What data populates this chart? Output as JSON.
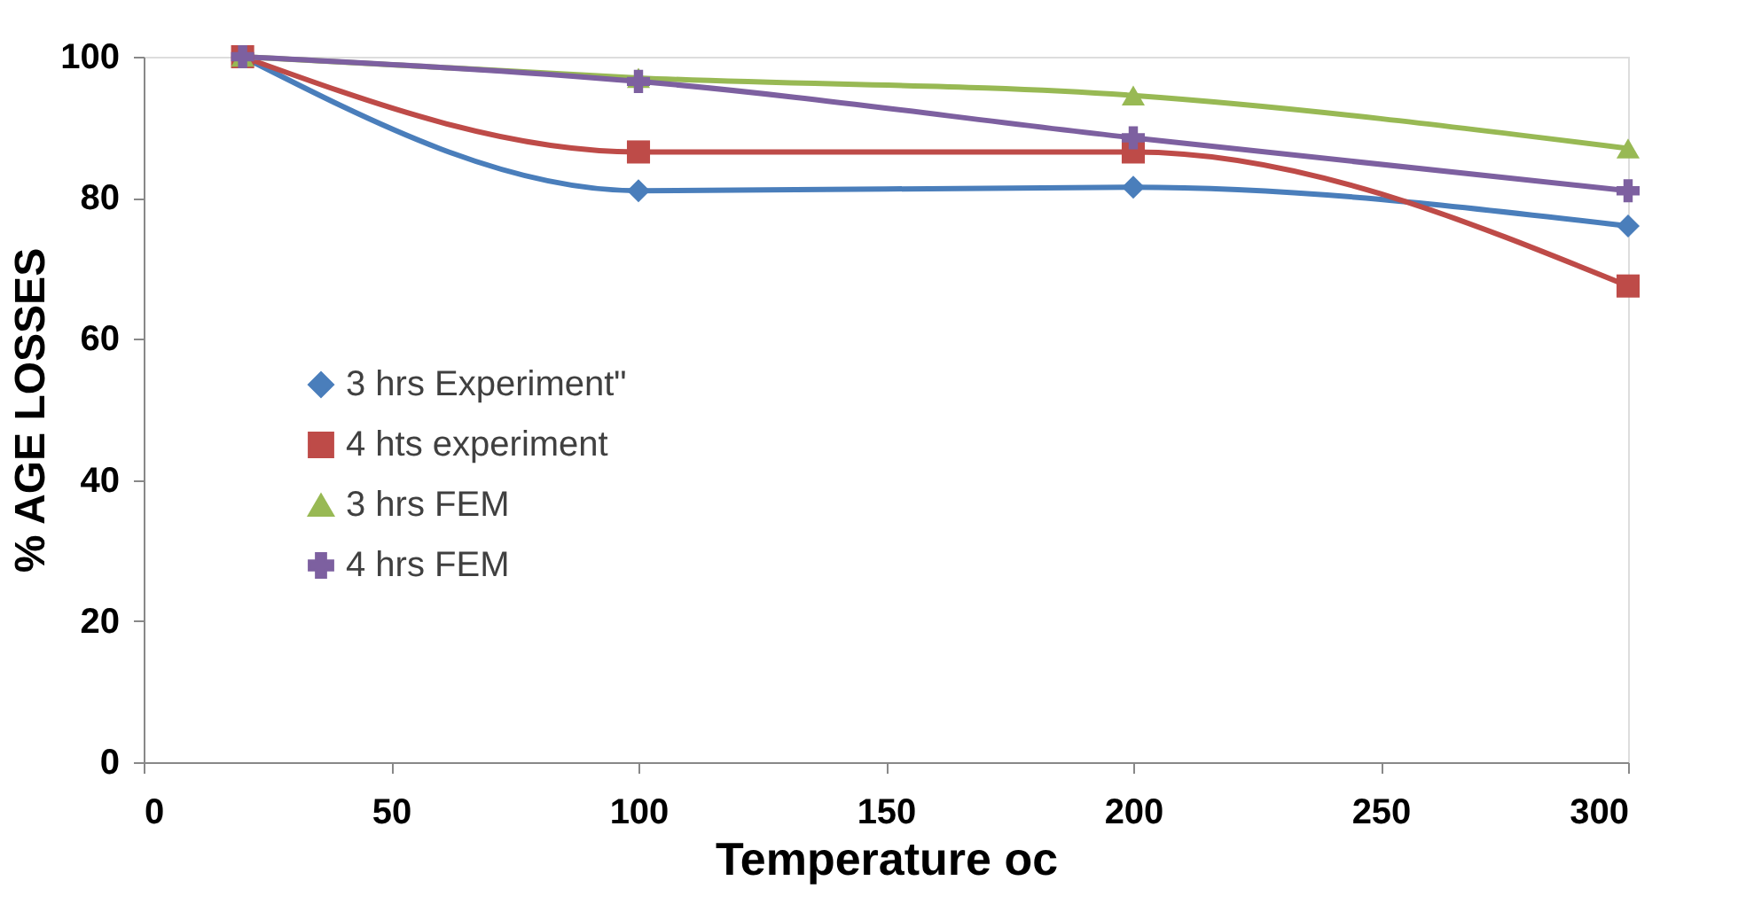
{
  "chart_data": {
    "type": "line",
    "xlabel": "Temperature  oc",
    "ylabel": "% AGE LOSSES",
    "x": [
      20,
      100,
      200,
      300
    ],
    "series": [
      {
        "name": "3 hrs Experiment\"",
        "color": "#4a7ebb",
        "marker": "diamond",
        "values": [
          100,
          81,
          81.5,
          76
        ]
      },
      {
        "name": "4 hts experiment",
        "color": "#be4b48",
        "marker": "square",
        "values": [
          100,
          86.5,
          86.5,
          67.5
        ]
      },
      {
        "name": "3 hrs FEM",
        "color": "#98b954",
        "marker": "triangle",
        "values": [
          100,
          97,
          94.5,
          87
        ]
      },
      {
        "name": "4 hrs FEM",
        "color": "#7d60a0",
        "marker": "cross",
        "values": [
          100,
          96.5,
          88.5,
          81
        ]
      }
    ],
    "xlim": [
      0,
      300
    ],
    "xticks": [
      0,
      50,
      100,
      150,
      200,
      250,
      300
    ],
    "ylim": [
      0,
      100
    ],
    "yticks": [
      0,
      20,
      40,
      60,
      80,
      100
    ],
    "grid": false,
    "legend": "left",
    "line_style": "solid"
  }
}
